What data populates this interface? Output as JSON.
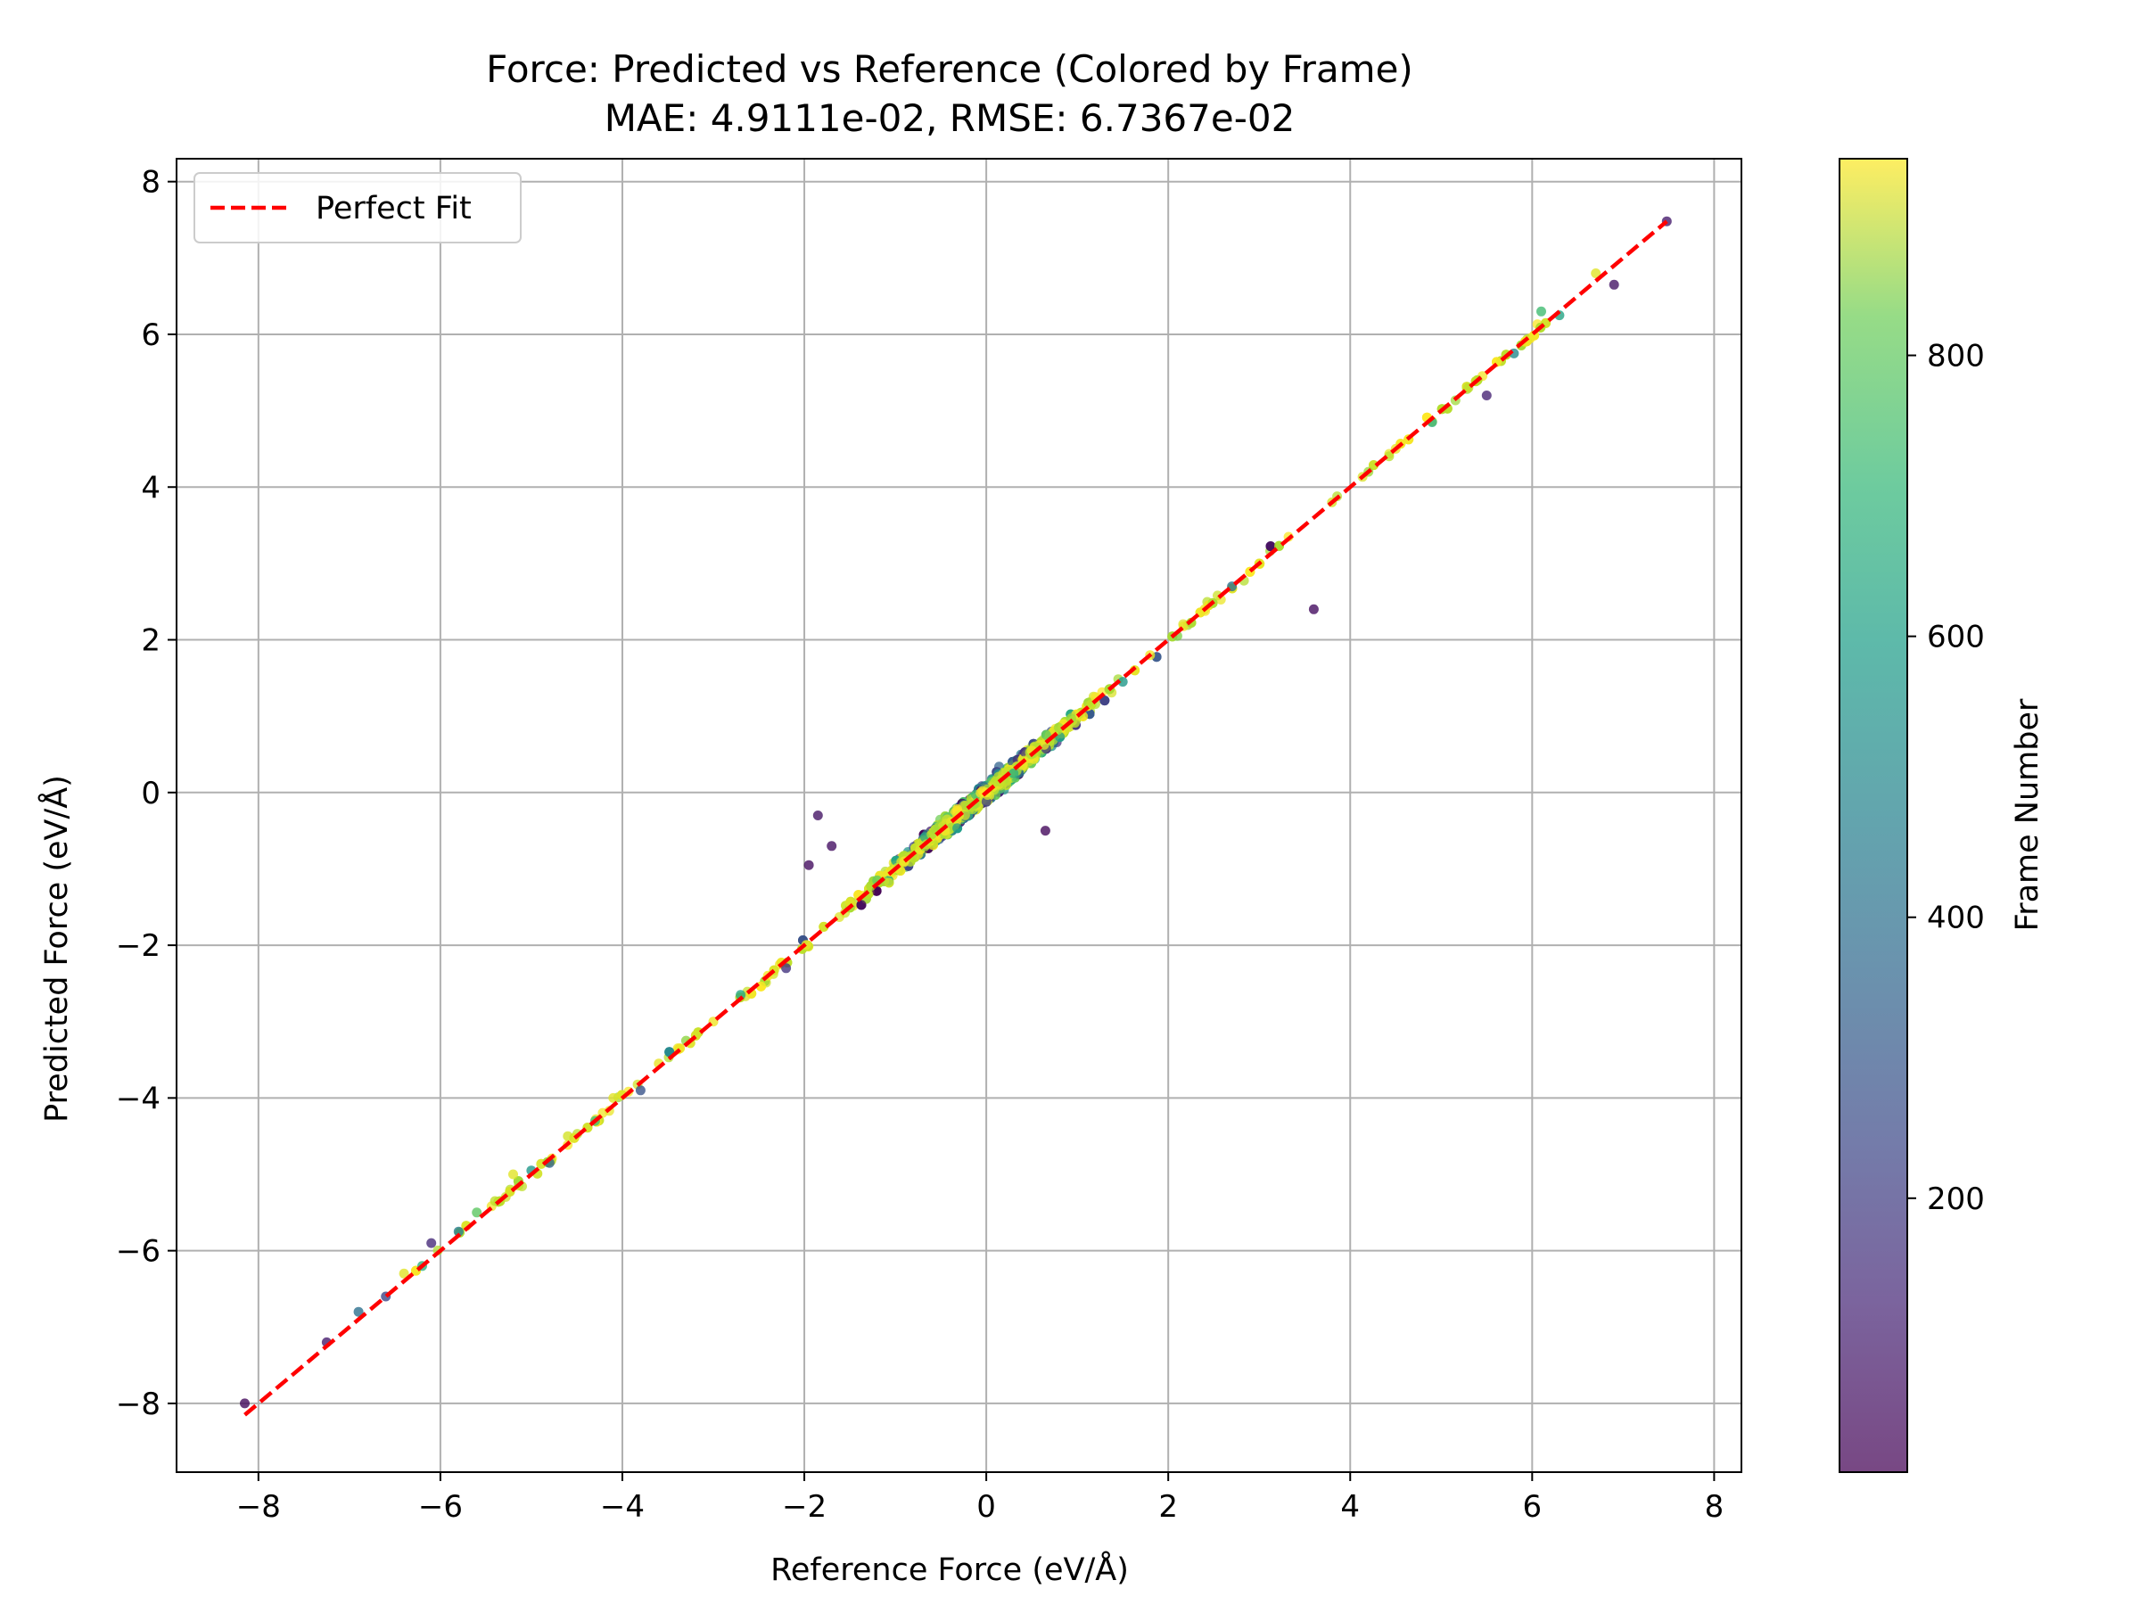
{
  "chart_data": {
    "type": "scatter",
    "title": "Force: Predicted vs Reference (Colored by Frame)",
    "subtitle": "MAE: 4.9111e-02, RMSE: 6.7367e-02",
    "xlabel": "Reference Force (eV/Å)",
    "ylabel": "Predicted Force (eV/Å)",
    "xlim": [
      -8.9,
      8.3
    ],
    "ylim": [
      -8.9,
      8.3
    ],
    "x_ticks": [
      -8,
      -6,
      -4,
      -2,
      0,
      2,
      4,
      6,
      8
    ],
    "y_ticks": [
      -8,
      -6,
      -4,
      -2,
      0,
      2,
      4,
      6,
      8
    ],
    "x_tick_labels": [
      "−8",
      "−6",
      "−4",
      "−2",
      "0",
      "2",
      "4",
      "6",
      "8"
    ],
    "y_tick_labels": [
      "−8",
      "−6",
      "−4",
      "−2",
      "0",
      "2",
      "4",
      "6",
      "8"
    ],
    "grid": true,
    "legend": {
      "placement": "top-left",
      "entries": [
        {
          "label": "Perfect Fit",
          "color": "#ff0000",
          "style": "dashed"
        }
      ]
    },
    "reference_line": {
      "name": "Perfect Fit",
      "x": [
        -8.15,
        7.48
      ],
      "y": [
        -8.15,
        7.48
      ],
      "color": "#ff0000"
    },
    "colorbar": {
      "label": "Frame Number",
      "range": [
        5,
        940
      ],
      "ticks": [
        200,
        400,
        600,
        800
      ],
      "tick_labels": [
        "200",
        "400",
        "600",
        "800"
      ],
      "colormap": "viridis",
      "alpha": 0.7
    },
    "series": [
      {
        "color_by": "frame",
        "points": [
          {
            "x": -8.15,
            "y": -8.0,
            "frame": 30
          },
          {
            "x": -7.25,
            "y": -7.2,
            "frame": 80
          },
          {
            "x": -6.9,
            "y": -6.8,
            "frame": 350
          },
          {
            "x": -6.6,
            "y": -6.6,
            "frame": 200
          },
          {
            "x": -6.4,
            "y": -6.3,
            "frame": 900
          },
          {
            "x": -6.2,
            "y": -6.2,
            "frame": 600
          },
          {
            "x": -6.1,
            "y": -5.9,
            "frame": 120
          },
          {
            "x": -5.8,
            "y": -5.75,
            "frame": 400
          },
          {
            "x": -5.6,
            "y": -5.5,
            "frame": 700
          },
          {
            "x": -5.4,
            "y": -5.35,
            "frame": 850
          },
          {
            "x": -5.2,
            "y": -5.0,
            "frame": 900
          },
          {
            "x": -5.0,
            "y": -4.95,
            "frame": 500
          },
          {
            "x": -4.8,
            "y": -4.85,
            "frame": 300
          },
          {
            "x": -4.6,
            "y": -4.5,
            "frame": 880
          },
          {
            "x": -4.3,
            "y": -4.3,
            "frame": 650
          },
          {
            "x": -4.1,
            "y": -4.0,
            "frame": 900
          },
          {
            "x": -3.8,
            "y": -3.9,
            "frame": 250
          },
          {
            "x": -3.6,
            "y": -3.55,
            "frame": 910
          },
          {
            "x": -3.3,
            "y": -3.25,
            "frame": 780
          },
          {
            "x": -3.0,
            "y": -3.0,
            "frame": 920
          },
          {
            "x": -2.7,
            "y": -2.65,
            "frame": 560
          },
          {
            "x": -2.4,
            "y": -2.4,
            "frame": 930
          },
          {
            "x": -2.2,
            "y": -2.3,
            "frame": 150
          },
          {
            "x": -1.95,
            "y": -0.95,
            "frame": 40
          },
          {
            "x": -1.85,
            "y": -0.3,
            "frame": 60
          },
          {
            "x": -1.7,
            "y": -0.7,
            "frame": 50
          },
          {
            "x": -1.5,
            "y": -1.45,
            "frame": 900
          },
          {
            "x": -1.2,
            "y": -1.15,
            "frame": 720
          },
          {
            "x": -0.9,
            "y": -0.9,
            "frame": 930
          },
          {
            "x": -0.6,
            "y": -0.55,
            "frame": 820
          },
          {
            "x": -0.3,
            "y": -0.3,
            "frame": 910
          },
          {
            "x": 0.0,
            "y": 0.0,
            "frame": 935
          },
          {
            "x": 0.3,
            "y": 0.25,
            "frame": 600
          },
          {
            "x": 0.65,
            "y": -0.5,
            "frame": 30
          },
          {
            "x": 0.5,
            "y": 0.55,
            "frame": 920
          },
          {
            "x": 0.9,
            "y": 0.85,
            "frame": 880
          },
          {
            "x": 1.2,
            "y": 1.25,
            "frame": 930
          },
          {
            "x": 1.5,
            "y": 1.45,
            "frame": 500
          },
          {
            "x": 1.8,
            "y": 1.8,
            "frame": 925
          },
          {
            "x": 2.1,
            "y": 2.05,
            "frame": 760
          },
          {
            "x": 2.4,
            "y": 2.4,
            "frame": 920
          },
          {
            "x": 2.7,
            "y": 2.7,
            "frame": 350
          },
          {
            "x": 3.0,
            "y": 3.0,
            "frame": 900
          },
          {
            "x": 3.6,
            "y": 2.4,
            "frame": 40
          },
          {
            "x": 3.8,
            "y": 3.8,
            "frame": 880
          },
          {
            "x": 4.2,
            "y": 4.2,
            "frame": 800
          },
          {
            "x": 4.5,
            "y": 4.5,
            "frame": 910
          },
          {
            "x": 4.9,
            "y": 4.85,
            "frame": 600
          },
          {
            "x": 5.3,
            "y": 5.3,
            "frame": 850
          },
          {
            "x": 5.5,
            "y": 5.2,
            "frame": 100
          },
          {
            "x": 5.8,
            "y": 5.75,
            "frame": 450
          },
          {
            "x": 6.1,
            "y": 6.3,
            "frame": 650
          },
          {
            "x": 6.3,
            "y": 6.25,
            "frame": 550
          },
          {
            "x": 6.7,
            "y": 6.8,
            "frame": 900
          },
          {
            "x": 6.9,
            "y": 6.65,
            "frame": 60
          },
          {
            "x": 7.48,
            "y": 7.48,
            "frame": 80
          }
        ]
      }
    ]
  }
}
